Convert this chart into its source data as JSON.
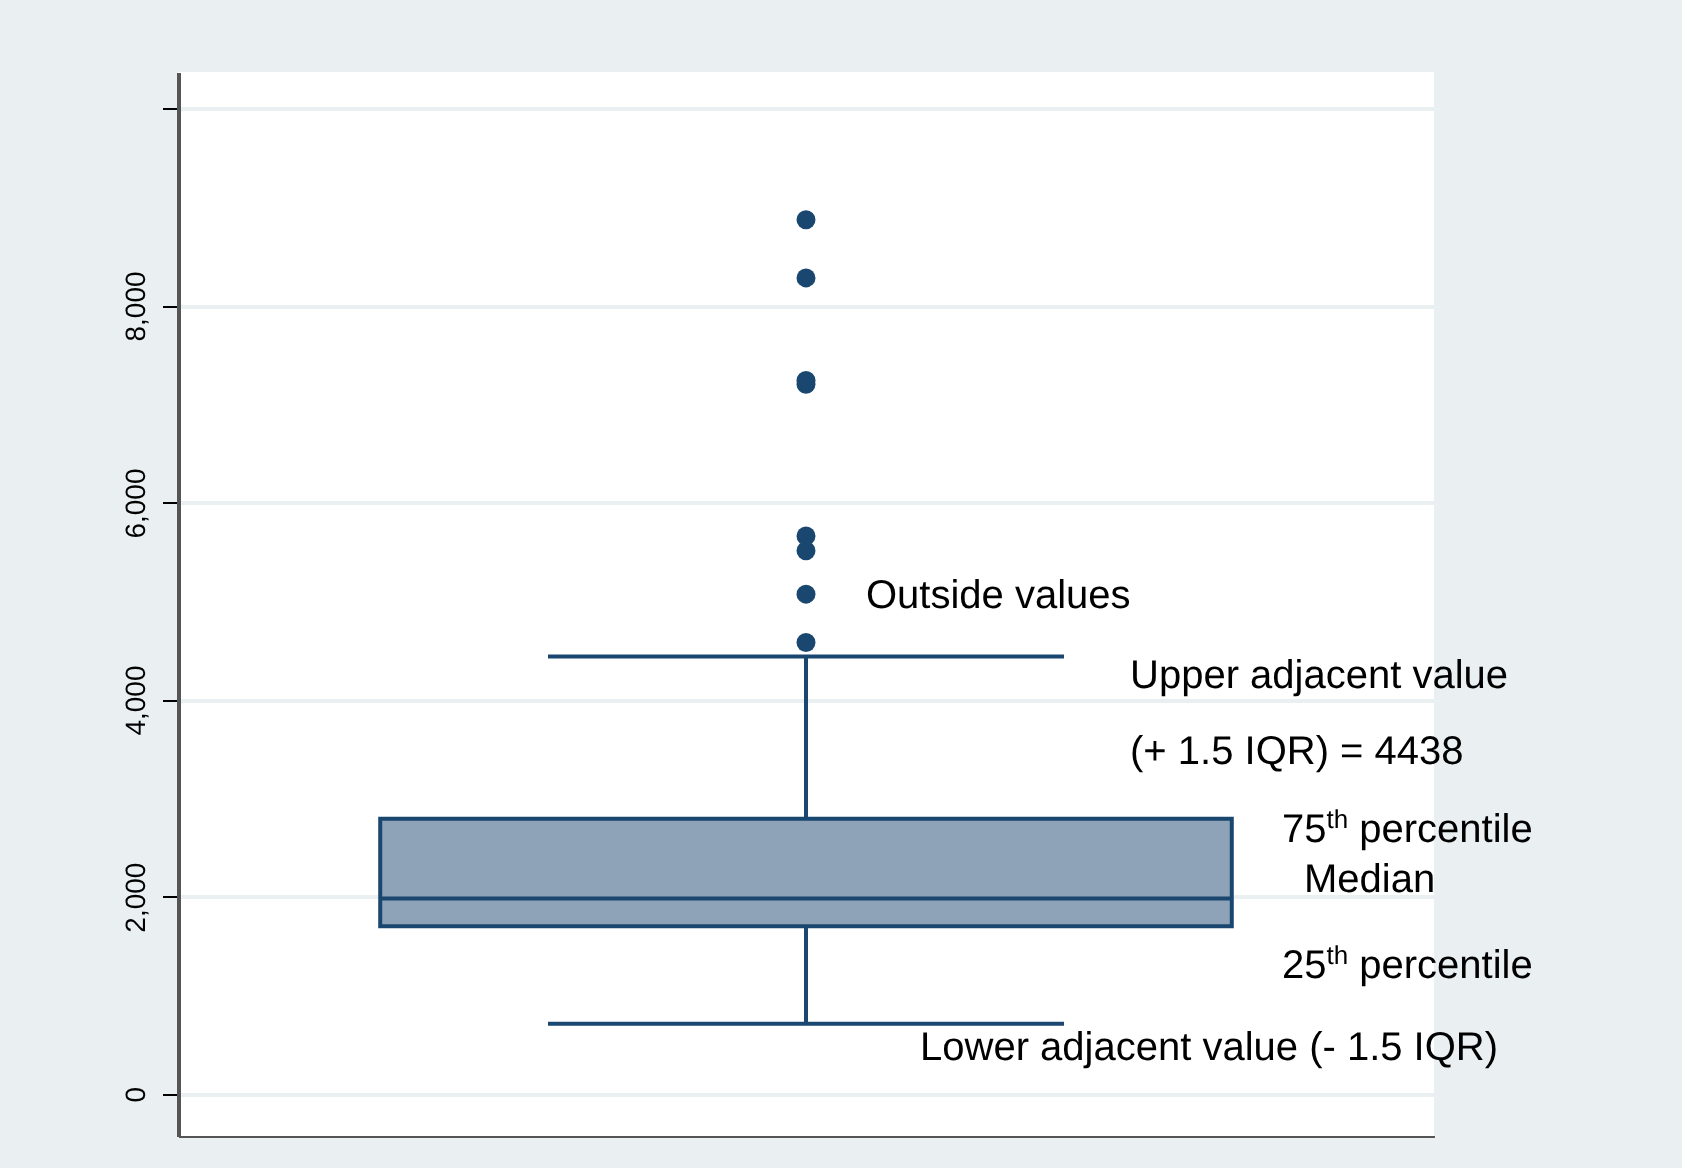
{
  "chart_data": {
    "type": "box",
    "categories": [
      null
    ],
    "series": [
      {
        "color": "#1a476f",
        "colors": [
          "#8ea3b7"
        ],
        "boxes": [
          {
            "low": 710,
            "q1": 1700,
            "median": 1980,
            "q3": 2790,
            "high": 4438,
            "outliers": [
              4580,
              5070,
              5510,
              5660,
              7200,
              7240,
              8280,
              8870
            ]
          }
        ]
      }
    ],
    "ylim": [
      -430,
      10370
    ],
    "yticks": [
      0,
      {
        "value": 2000,
        "label": "2,000"
      },
      {
        "value": 4000,
        "label": "4,000"
      },
      {
        "value": 6000,
        "label": "6,000"
      },
      {
        "value": 8000,
        "label": "8,000"
      },
      {
        "value": 10000,
        "label": null
      }
    ],
    "grid": "y",
    "tick_labels": "y",
    "annotations": [
      "Outside values",
      "Upper adjacent value",
      "(+ 1.5 IQR) = 4438",
      "75$^{th}$ percentile",
      "Median",
      "25$^{th}$ percentile",
      "Lower adjacent value (- 1.5 IQR)"
    ]
  }
}
